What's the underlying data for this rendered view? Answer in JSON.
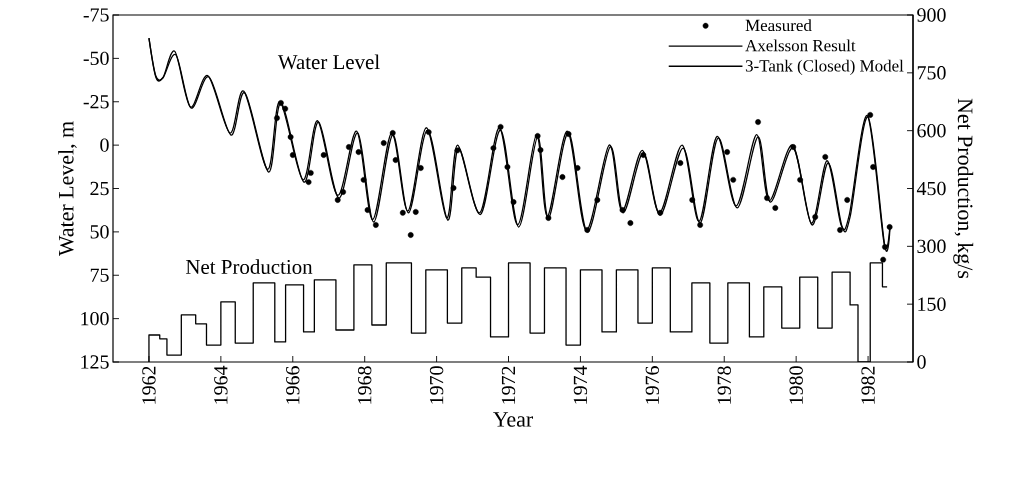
{
  "chart_data": {
    "type": "line",
    "xlabel": "Year",
    "ylabel": "Water Level, m",
    "y2label": "Net Production, kg/s",
    "xlim": [
      1961,
      1983.25
    ],
    "xticks": [
      1962,
      1964,
      1966,
      1968,
      1970,
      1972,
      1974,
      1976,
      1978,
      1980,
      1982
    ],
    "ylim": [
      125,
      -75
    ],
    "yticks": [
      -75,
      -50,
      -25,
      0,
      25,
      50,
      75,
      100,
      125
    ],
    "y2lim": [
      0,
      900
    ],
    "y2ticks": [
      0,
      150,
      300,
      450,
      600,
      750,
      900
    ],
    "legend": "top right",
    "annotations": [
      "Water Level",
      "Net Production"
    ],
    "series": [
      {
        "name": "Measured",
        "type": "scatter",
        "marker": "circle",
        "color": "#000000",
        "x": [
          1965.56,
          1965.67,
          1965.79,
          1965.94,
          1966.0,
          1966.44,
          1966.5,
          1966.86,
          1967.25,
          1967.4,
          1967.56,
          1967.83,
          1967.97,
          1968.08,
          1968.31,
          1968.53,
          1968.78,
          1968.86,
          1969.06,
          1969.28,
          1969.42,
          1969.56,
          1969.78,
          1970.47,
          1970.58,
          1971.58,
          1971.78,
          1971.97,
          1972.14,
          1972.81,
          1972.89,
          1973.11,
          1973.5,
          1973.67,
          1973.92,
          1974.19,
          1974.47,
          1975.17,
          1975.39,
          1975.75,
          1976.22,
          1976.78,
          1977.11,
          1977.33,
          1978.08,
          1978.25,
          1978.94,
          1979.19,
          1979.42,
          1979.92,
          1980.11,
          1980.53,
          1980.81,
          1981.22,
          1981.42,
          1982.06,
          1982.14,
          1982.42,
          1982.47,
          1982.6
        ],
        "values": [
          -15.6,
          -24.3,
          -21,
          -4.7,
          5.7,
          21.3,
          16,
          5.7,
          31.6,
          27,
          1.1,
          4,
          20,
          37.4,
          46,
          -1.2,
          -7,
          8.6,
          39,
          51.8,
          38.5,
          13.2,
          -7.5,
          24.7,
          3,
          1.7,
          -10.5,
          12.6,
          32.8,
          -5.3,
          2.8,
          42,
          18.4,
          -6.4,
          13.2,
          48.9,
          31.6,
          37.4,
          44.9,
          5.7,
          39,
          10.3,
          31.6,
          46,
          4,
          20,
          -13.3,
          30.5,
          36.2,
          1.1,
          20,
          41.4,
          6.8,
          48.9,
          31.6,
          -17.4,
          12.6,
          66,
          58.7,
          47.2
        ]
      },
      {
        "name": "Axelsson Result",
        "color": "#000000",
        "x": [
          1962.0,
          1962.19,
          1962.39,
          1962.75,
          1963.17,
          1963.67,
          1964.28,
          1964.67,
          1965.33,
          1965.67,
          1966.31,
          1966.72,
          1967.28,
          1967.81,
          1968.25,
          1968.78,
          1969.22,
          1969.75,
          1970.31,
          1970.61,
          1971.22,
          1971.78,
          1972.28,
          1972.81,
          1973.11,
          1973.67,
          1974.19,
          1974.83,
          1975.19,
          1975.75,
          1976.22,
          1976.86,
          1977.33,
          1977.83,
          1978.36,
          1978.94,
          1979.28,
          1979.92,
          1980.44,
          1980.89,
          1981.28,
          1981.5,
          1982.0,
          1982.47,
          1982.61
        ],
        "values": [
          -61.7,
          -39.3,
          -38.7,
          -52,
          -21.4,
          -39.3,
          -5.8,
          -30,
          15.5,
          -24.3,
          21.3,
          -13.3,
          30.5,
          -7,
          44.3,
          -5.8,
          39,
          -8.7,
          43.2,
          1.7,
          40,
          -8.7,
          47.2,
          -4.7,
          42,
          -7,
          50,
          1,
          39,
          4.5,
          40.3,
          1.7,
          44.9,
          -4.1,
          36.2,
          -4.7,
          32.8,
          1.7,
          46,
          10.3,
          47.2,
          41.4,
          -16.2,
          58.7,
          47.2
        ]
      },
      {
        "name": "3-Tank (Closed) Model",
        "color": "#000000",
        "x": [
          1962.0,
          1962.19,
          1962.39,
          1962.72,
          1963.15,
          1963.64,
          1964.25,
          1964.64,
          1965.3,
          1965.64,
          1966.28,
          1966.69,
          1967.25,
          1967.78,
          1968.22,
          1968.75,
          1969.2,
          1969.72,
          1970.28,
          1970.58,
          1971.2,
          1971.75,
          1972.25,
          1972.78,
          1973.08,
          1973.64,
          1974.16,
          1974.8,
          1975.16,
          1975.72,
          1976.2,
          1976.83,
          1977.3,
          1977.8,
          1978.33,
          1978.9,
          1979.25,
          1979.9,
          1980.42,
          1980.86,
          1981.25,
          1981.48,
          1981.98,
          1982.45,
          1982.61
        ],
        "values": [
          -61.7,
          -40,
          -39,
          -54,
          -22,
          -40,
          -7,
          -31,
          14,
          -25,
          20,
          -14,
          29,
          -8,
          43,
          -7,
          38,
          -10,
          42,
          0,
          39,
          -10,
          46,
          -6,
          41,
          -8,
          49,
          0,
          38,
          3,
          39,
          0,
          44,
          -5,
          35,
          -6,
          32,
          0,
          45,
          9,
          46,
          40,
          -17,
          57,
          46
        ]
      },
      {
        "type": "step",
        "axis": "y2",
        "color": "#000000",
        "x": [
          1962.0,
          1962.0,
          1962.3,
          1962.5,
          1962.9,
          1963.3,
          1963.6,
          1964.0,
          1964.4,
          1964.9,
          1965.5,
          1965.8,
          1966.3,
          1966.6,
          1967.2,
          1967.7,
          1968.2,
          1968.6,
          1969.3,
          1969.7,
          1970.3,
          1970.7,
          1971.1,
          1971.5,
          1972.0,
          1972.6,
          1973.0,
          1973.6,
          1974.0,
          1974.6,
          1975.0,
          1975.6,
          1976.0,
          1976.5,
          1977.1,
          1977.6,
          1978.1,
          1978.7,
          1979.1,
          1979.6,
          1980.1,
          1980.6,
          1981.0,
          1981.5,
          1981.72,
          1982.06,
          1982.4,
          1982.53
        ],
        "values": [
          0,
          70,
          60,
          18,
          122,
          99,
          44,
          156,
          49,
          205,
          52,
          200,
          78,
          213,
          83,
          252,
          96,
          257,
          75,
          239,
          101,
          244,
          220,
          65,
          257,
          75,
          244,
          44,
          239,
          78,
          239,
          101,
          244,
          78,
          205,
          49,
          205,
          65,
          195,
          88,
          220,
          88,
          233,
          148,
          0,
          257,
          195,
          195
        ]
      }
    ]
  }
}
